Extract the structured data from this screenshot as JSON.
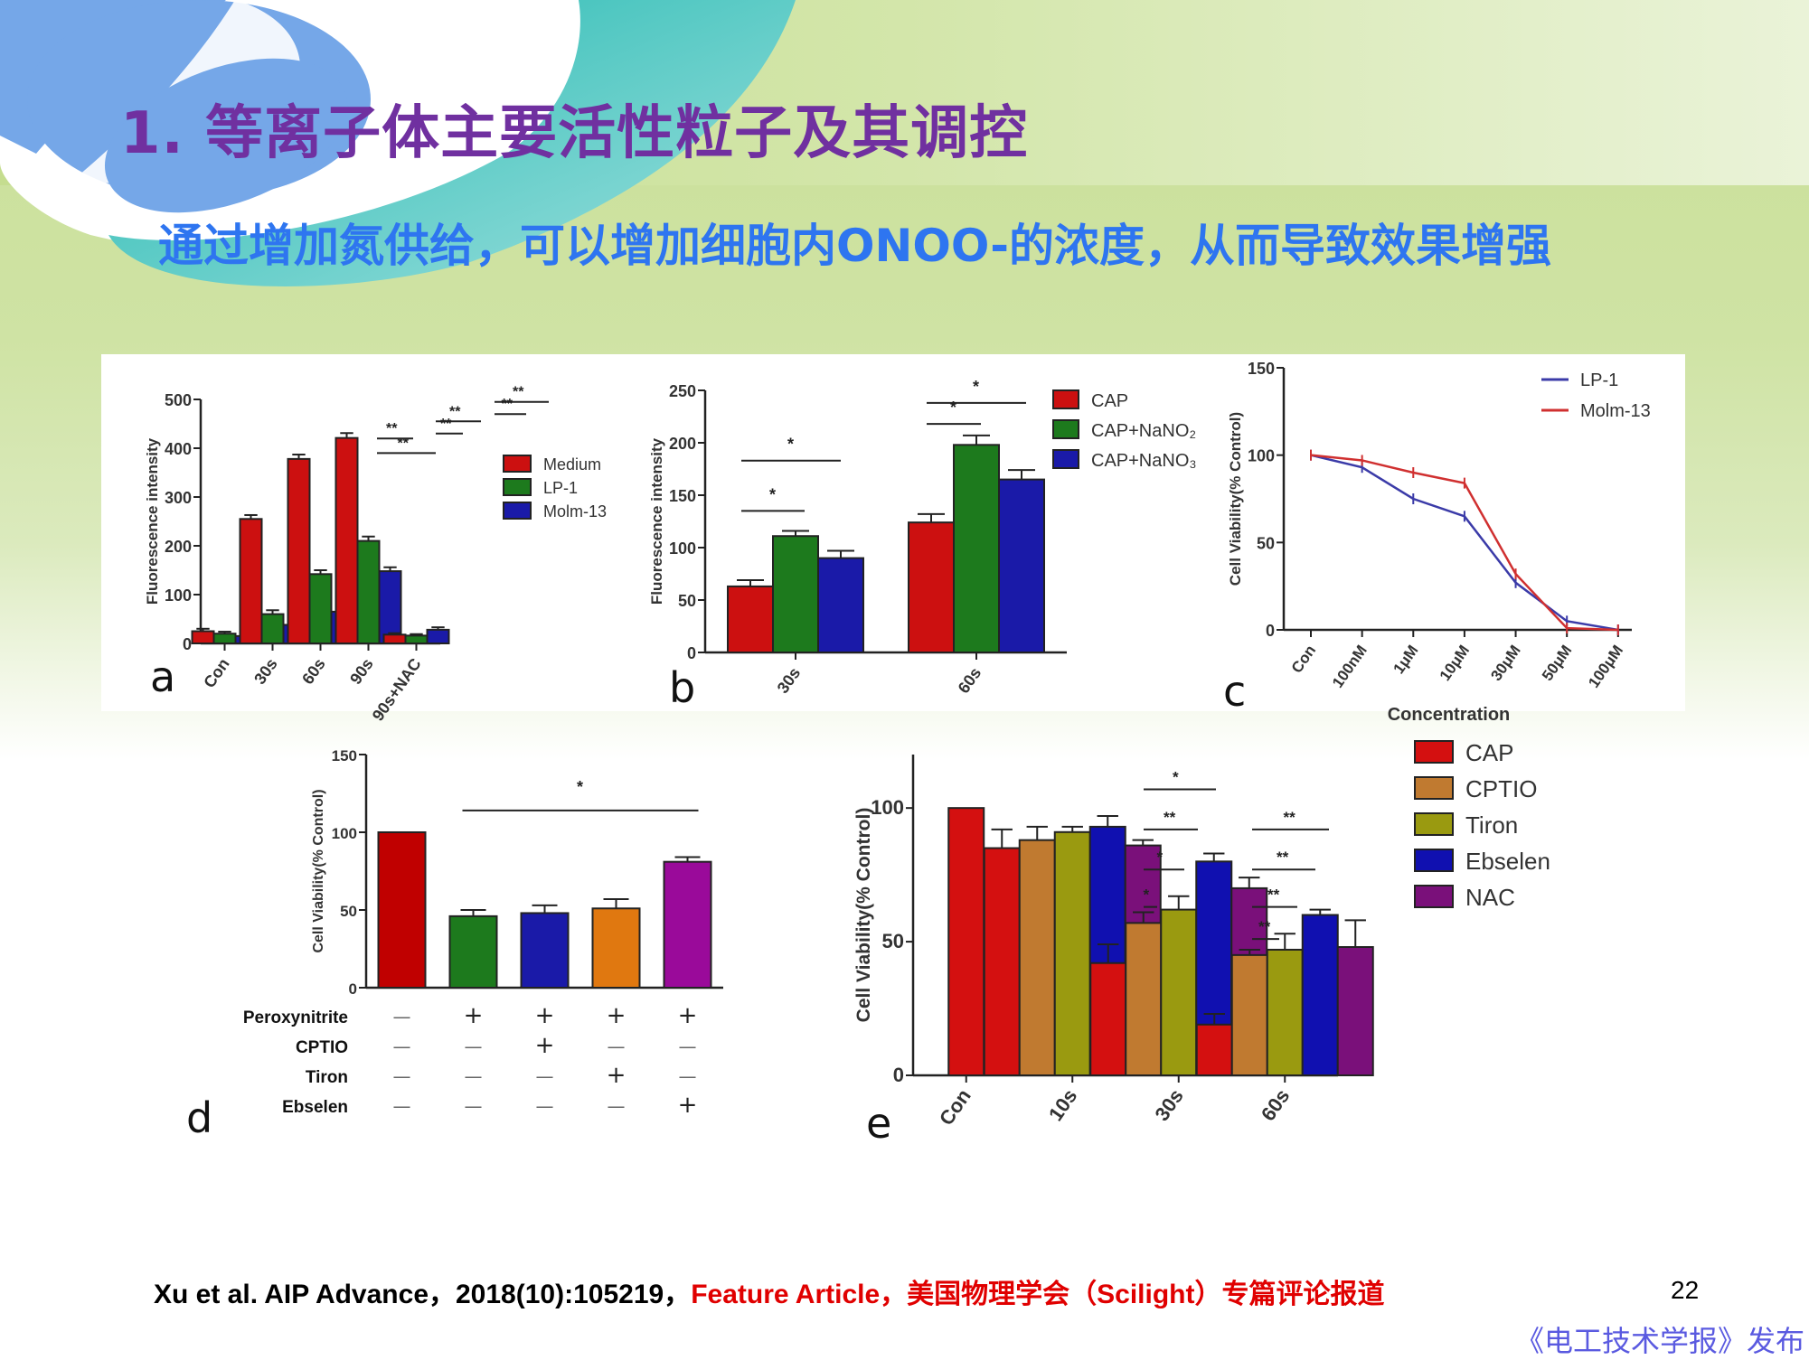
{
  "slide": {
    "title": "1. 等离子体主要活性粒子及其调控",
    "subtitle": "通过增加氮供给，可以增加细胞内ONOO-的浓度，从而导致效果增强",
    "footer_citation": "Xu et al. AIP Advance，2018(10):105219，",
    "footer_highlight": "Feature Article，美国物理学会（Scilight）专篇评论报道",
    "page_number": "22",
    "publisher": "《电工技术学报》发布",
    "colors": {
      "title": "#7030a0",
      "subtitle": "#2e75f0",
      "footer_highlight": "#e00000",
      "publisher": "#5a5ae0"
    }
  },
  "panel_labels": {
    "a": "a",
    "b": "b",
    "c": "c",
    "d": "d",
    "e": "e"
  },
  "chart_data": [
    {
      "id": "a",
      "type": "bar",
      "title": "",
      "xlabel": "",
      "ylabel": "Fluorescence intensity",
      "ylim": [
        0,
        500
      ],
      "yticks": [
        0,
        100,
        200,
        300,
        400,
        500
      ],
      "categories": [
        "Con",
        "30s",
        "60s",
        "90s",
        "90s+NAC"
      ],
      "series": [
        {
          "name": "Medium",
          "color": "#cc1010",
          "values": [
            25,
            255,
            378,
            421,
            18
          ],
          "errors": [
            5,
            8,
            9,
            10,
            3
          ]
        },
        {
          "name": "LP-1",
          "color": "#1d7a1d",
          "values": [
            20,
            60,
            142,
            210,
            16
          ],
          "errors": [
            4,
            8,
            8,
            9,
            3
          ]
        },
        {
          "name": "Molm-13",
          "color": "#1a1aa8",
          "values": [
            15,
            38,
            65,
            148,
            28
          ],
          "errors": [
            3,
            4,
            4,
            8,
            5
          ]
        }
      ],
      "annotations": [
        "**",
        "**",
        "**",
        "**",
        "**",
        "**"
      ],
      "legend_position": "right"
    },
    {
      "id": "b",
      "type": "bar",
      "title": "",
      "xlabel": "",
      "ylabel": "Fluorescence intensity",
      "ylim": [
        0,
        250
      ],
      "yticks": [
        0,
        50,
        100,
        150,
        200,
        250
      ],
      "categories": [
        "30s",
        "60s"
      ],
      "series": [
        {
          "name": "CAP",
          "color": "#cc1010",
          "values": [
            63,
            124
          ],
          "errors": [
            6,
            8
          ]
        },
        {
          "name": "CAP+NaNO2",
          "color": "#1d7a1d",
          "values": [
            111,
            198
          ],
          "errors": [
            5,
            9
          ]
        },
        {
          "name": "CAP+NaNO3",
          "color": "#1a1aa8",
          "values": [
            90,
            165
          ],
          "errors": [
            7,
            9
          ]
        }
      ],
      "annotations": [
        "*",
        "*",
        "*",
        "*"
      ],
      "legend_position": "right"
    },
    {
      "id": "c",
      "type": "line",
      "title": "",
      "xlabel": "Concentration",
      "ylabel": "Cell Viability(% Control)",
      "ylim": [
        0,
        150
      ],
      "yticks": [
        0,
        50,
        100,
        150
      ],
      "x": [
        "Con",
        "100nM",
        "1μM",
        "10μM",
        "30μM",
        "50μM",
        "100μM"
      ],
      "series": [
        {
          "name": "LP-1",
          "color": "#3b3ba8",
          "values": [
            100,
            93,
            75,
            65,
            27,
            5,
            0
          ]
        },
        {
          "name": "Molm-13",
          "color": "#d03030",
          "values": [
            100,
            97,
            90,
            84,
            32,
            1,
            0
          ]
        }
      ],
      "legend_position": "upper right"
    },
    {
      "id": "d",
      "type": "bar",
      "title": "",
      "xlabel": "",
      "ylabel": "Cell Viability(% Control)",
      "ylim": [
        0,
        150
      ],
      "yticks": [
        0,
        50,
        100,
        150
      ],
      "categories": [
        "1",
        "2",
        "3",
        "4",
        "5"
      ],
      "values": [
        100,
        46,
        48,
        51,
        81
      ],
      "errors": [
        0,
        4,
        5,
        6,
        3
      ],
      "colors": [
        "#c00000",
        "#1d7a1d",
        "#1a1aa8",
        "#e07810",
        "#9a0a9a"
      ],
      "annotations": [
        "*"
      ],
      "treatment_table": {
        "rows": [
          {
            "label": "Peroxynitrite",
            "signs": [
              "—",
              "+",
              "+",
              "+",
              "+"
            ]
          },
          {
            "label": "CPTIO",
            "signs": [
              "—",
              "—",
              "+",
              "—",
              "—"
            ]
          },
          {
            "label": "Tiron",
            "signs": [
              "—",
              "—",
              "—",
              "+",
              "—"
            ]
          },
          {
            "label": "Ebselen",
            "signs": [
              "—",
              "—",
              "—",
              "—",
              "+"
            ]
          }
        ]
      }
    },
    {
      "id": "e",
      "type": "bar",
      "title": "",
      "xlabel": "",
      "ylabel": "Cell Viability(% Control)",
      "ylim": [
        0,
        120
      ],
      "yticks": [
        0,
        50,
        100
      ],
      "categories": [
        "Con",
        "10s",
        "30s",
        "60s"
      ],
      "series": [
        {
          "name": "CAP",
          "color": "#d41010",
          "values": [
            100,
            85,
            42,
            19
          ],
          "errors": [
            0,
            7,
            7,
            4
          ]
        },
        {
          "name": "CPTIO",
          "color": "#c07a30",
          "values": [
            null,
            88,
            57,
            45
          ],
          "errors": [
            0,
            5,
            4,
            2
          ]
        },
        {
          "name": "Tiron",
          "color": "#9a9a10",
          "values": [
            null,
            91,
            62,
            47
          ],
          "errors": [
            0,
            2,
            5,
            6
          ]
        },
        {
          "name": "Ebselen",
          "color": "#1010b0",
          "values": [
            null,
            93,
            80,
            60
          ],
          "errors": [
            0,
            4,
            3,
            2
          ]
        },
        {
          "name": "NAC",
          "color": "#7a107a",
          "values": [
            null,
            86,
            70,
            48
          ],
          "errors": [
            0,
            2,
            4,
            10
          ]
        }
      ],
      "annotations": [
        "*",
        "**",
        "*",
        "*",
        "**",
        "**",
        "**",
        "**"
      ],
      "legend_position": "right"
    }
  ]
}
